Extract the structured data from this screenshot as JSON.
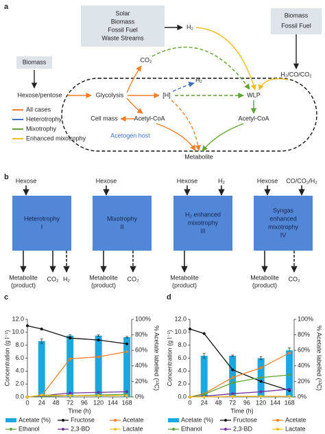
{
  "panel_a": {
    "label": "a",
    "sources": [
      "Solar",
      "Biomass",
      "Fossil Fuel",
      "Waste Streams"
    ],
    "h2": "H₂",
    "gas_sources": [
      "Biomass",
      "Fossil Fuel"
    ],
    "syngas": "H₂/CO/CO₂",
    "biomass": "Biomass",
    "sugar": "Hexose/pentose",
    "co2": "CO₂",
    "h2_out": "H₂",
    "glycolysis": "Glycolysis",
    "reducing_equivalents": "[H]",
    "wlp": "WLP",
    "cell_mass": "Cell mass",
    "acetyl_coa_left": "Acetyl-CoA",
    "acetyl_coa_right": "Acetyl-CoA",
    "host": "Acetogen host",
    "metabolite": "Metabolite",
    "legend": [
      {
        "name": "All cases",
        "color": "#f07f2a"
      },
      {
        "name": "Heterotrophy",
        "color": "#3f6fc4"
      },
      {
        "name": "Mixotrophy",
        "color": "#5fa332"
      },
      {
        "name": "Enhanced mixotrophy",
        "color": "#f5bd1f"
      }
    ]
  },
  "panel_b": {
    "label": "b",
    "modes": [
      {
        "inputs": [
          "Hexose"
        ],
        "name": [
          "Heterotrophy",
          "I"
        ],
        "outputs": [
          [
            "Metabolite",
            "(product)"
          ],
          [
            "CO₂"
          ],
          [
            "H₂"
          ]
        ]
      },
      {
        "inputs": [
          "Hexose"
        ],
        "name": [
          "Mixotrophy",
          "II"
        ],
        "outputs": [
          [
            "Metabolite",
            "(product)"
          ],
          [
            "CO₂"
          ]
        ]
      },
      {
        "inputs": [
          "Hexose",
          "H₂"
        ],
        "name": [
          "H₂ enhanced",
          "mixotrophy",
          "III"
        ],
        "outputs": [
          [
            "Metabolite",
            "(product)"
          ]
        ]
      },
      {
        "inputs": [
          "Hexose",
          "CO/CO₂/H₂"
        ],
        "name": [
          "Syngas",
          "enhanced",
          "mixotrophy",
          "IV"
        ],
        "outputs": [
          [
            "Metabolite",
            "(product)"
          ],
          [
            "CO₂"
          ]
        ]
      }
    ]
  },
  "chart_data": [
    {
      "type": "combo",
      "panel_label": "c",
      "xlabel": "Time (h)",
      "ylabel": "Concentration (g l⁻¹)",
      "y2label": "% Acetate labelled (¹³C)",
      "xlim": [
        0,
        176
      ],
      "xticks": [
        0,
        24,
        48,
        72,
        96,
        120,
        144,
        168
      ],
      "ylim": [
        0,
        12
      ],
      "yticks": [
        {
          "value": 0,
          "label": "0.0"
        },
        {
          "value": 2,
          "label": "2.0"
        },
        {
          "value": 4,
          "label": "4.0"
        },
        {
          "value": 6,
          "label": "6.0"
        },
        {
          "value": 8,
          "label": "8.0"
        },
        {
          "value": 10,
          "label": "10.0"
        },
        {
          "value": 12,
          "label": "12.0"
        }
      ],
      "y2lim": [
        0,
        100
      ],
      "y2ticks": [
        {
          "value": 0,
          "label": "0%"
        },
        {
          "value": 20,
          "label": "20%"
        },
        {
          "value": 40,
          "label": "40%"
        },
        {
          "value": 60,
          "label": "60%"
        },
        {
          "value": 80,
          "label": "80%"
        },
        {
          "value": 100,
          "label": "100%"
        }
      ],
      "series": [
        {
          "name": "Acetate (%)",
          "type": "bar",
          "axis": "y2",
          "color": "#1ba8e0",
          "x": [
            24,
            72,
            120,
            168
          ],
          "values": [
            72,
            79,
            79,
            77
          ],
          "errors": [
            3,
            1,
            1,
            1
          ]
        },
        {
          "name": "Fructose",
          "type": "line",
          "color": "#111111",
          "x": [
            0,
            24,
            72,
            120,
            168
          ],
          "values": [
            11.0,
            10.5,
            9.1,
            8.8,
            8.2
          ]
        },
        {
          "name": "Acetate",
          "type": "line",
          "color": "#f07f2a",
          "x": [
            0,
            24,
            72,
            120,
            168
          ],
          "values": [
            0,
            0.2,
            5.9,
            6.2,
            7.0
          ]
        },
        {
          "name": "Ethanol",
          "type": "line",
          "color": "#5fa332",
          "x": [
            0,
            24,
            72,
            120,
            168
          ],
          "values": [
            0,
            0.1,
            0.2,
            0.3,
            0.4
          ]
        },
        {
          "name": "2,3-BD",
          "type": "line",
          "color": "#7030a0",
          "x": [
            0,
            24,
            72,
            120,
            168
          ],
          "values": [
            0,
            0.2,
            0.6,
            0.7,
            0.8
          ]
        },
        {
          "name": "Lactate",
          "type": "line",
          "color": "#f5bd1f",
          "x": [
            0,
            24,
            72,
            120,
            168
          ],
          "values": [
            0,
            0.3,
            0.2,
            0.2,
            0.2
          ]
        }
      ]
    },
    {
      "type": "combo",
      "panel_label": "d",
      "xlabel": "Time (h)",
      "ylabel": "Concentration (g l⁻¹)",
      "y2label": "% Acetate labelled (¹³C)",
      "xlim": [
        0,
        176
      ],
      "xticks": [
        0,
        24,
        48,
        72,
        96,
        120,
        144,
        168
      ],
      "ylim": [
        0,
        12
      ],
      "yticks": [
        {
          "value": 0,
          "label": "0.0"
        },
        {
          "value": 2,
          "label": "2.0"
        },
        {
          "value": 4,
          "label": "4.0"
        },
        {
          "value": 6,
          "label": "6.0"
        },
        {
          "value": 8,
          "label": "8.0"
        },
        {
          "value": 10,
          "label": "10.0"
        },
        {
          "value": 12,
          "label": "12.0"
        }
      ],
      "y2lim": [
        0,
        100
      ],
      "y2ticks": [
        {
          "value": 0,
          "label": "0%"
        },
        {
          "value": 20,
          "label": "20%"
        },
        {
          "value": 40,
          "label": "40%"
        },
        {
          "value": 60,
          "label": "60%"
        },
        {
          "value": 80,
          "label": "80%"
        },
        {
          "value": 100,
          "label": "100%"
        }
      ],
      "series": [
        {
          "name": "Acetate (%)",
          "type": "bar",
          "axis": "y2",
          "color": "#1ba8e0",
          "x": [
            24,
            72,
            120,
            168
          ],
          "values": [
            53,
            53,
            50,
            60
          ],
          "errors": [
            3,
            1,
            2,
            3
          ]
        },
        {
          "name": "Fructose",
          "type": "line",
          "color": "#111111",
          "x": [
            0,
            24,
            72,
            120,
            168
          ],
          "values": [
            10.5,
            9.8,
            4.2,
            2.4,
            1.0
          ]
        },
        {
          "name": "Acetate",
          "type": "line",
          "color": "#f07f2a",
          "x": [
            0,
            24,
            72,
            120,
            168
          ],
          "values": [
            0,
            0.5,
            3.0,
            4.5,
            6.8
          ]
        },
        {
          "name": "Ethanol",
          "type": "line",
          "color": "#5fa332",
          "x": [
            0,
            24,
            72,
            120,
            168
          ],
          "values": [
            0,
            0.4,
            2.2,
            3.0,
            3.4
          ]
        },
        {
          "name": "2,3-BD",
          "type": "line",
          "color": "#7030a0",
          "x": [
            0,
            24,
            72,
            120,
            168
          ],
          "values": [
            0,
            0.1,
            0.5,
            0.8,
            1.2
          ]
        },
        {
          "name": "Lactate",
          "type": "line",
          "color": "#f5bd1f",
          "x": [
            0,
            24,
            72,
            120,
            168
          ],
          "values": [
            0,
            0,
            0.1,
            0.1,
            0.1
          ]
        }
      ]
    }
  ]
}
